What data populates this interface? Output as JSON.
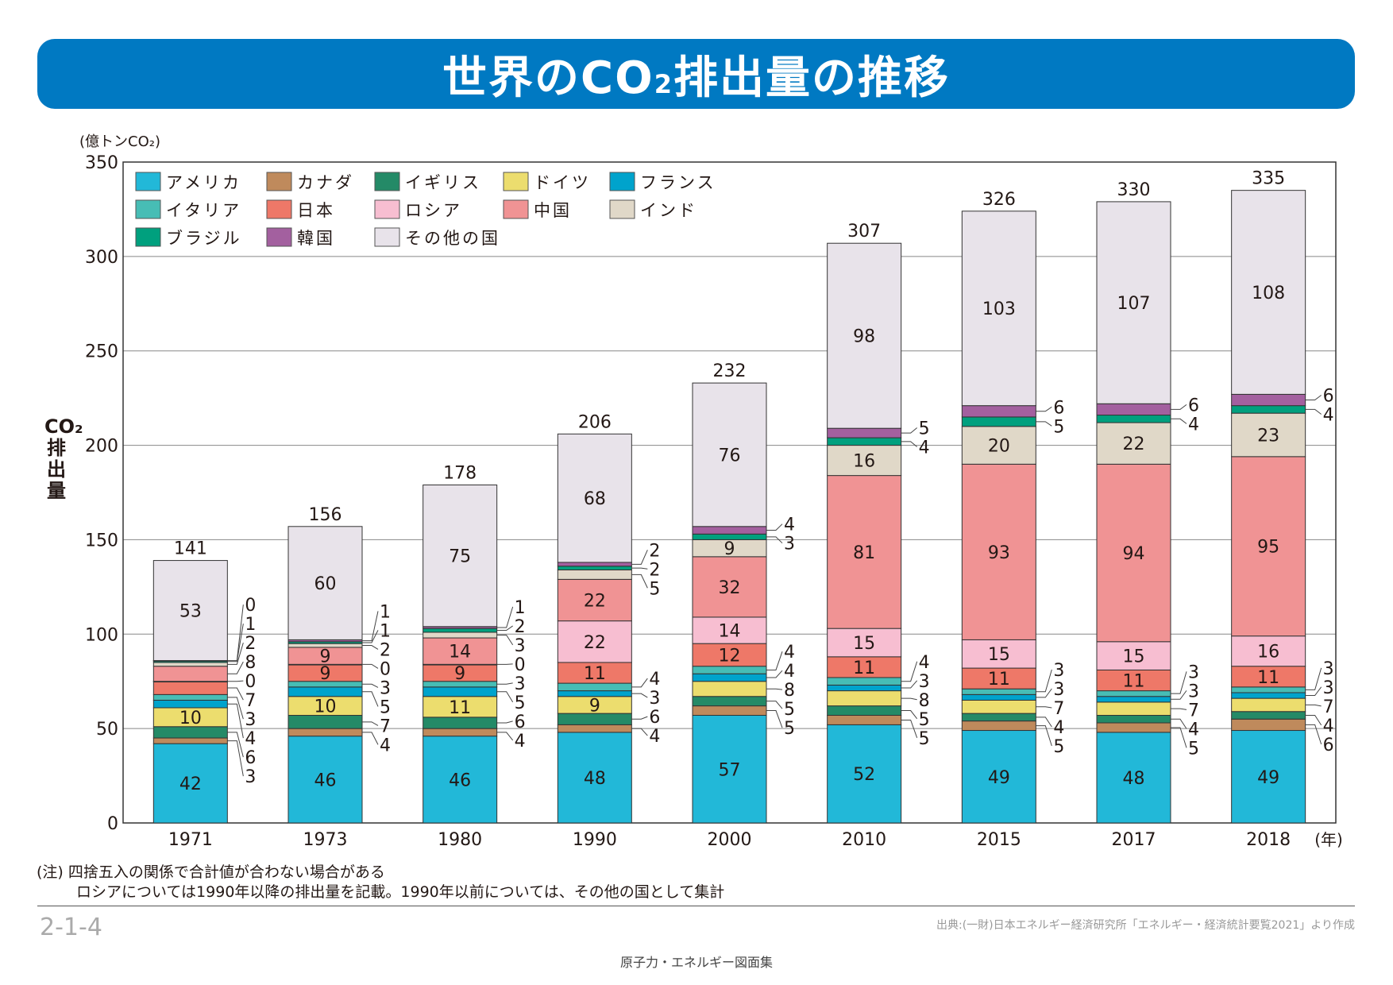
{
  "title": "世界のCO2排出量の推移",
  "title_parts": {
    "main1": "世界のCO",
    "sub": "2",
    "main2": "排出量の推移"
  },
  "unit_label": "(億トンCO₂)",
  "notes": [
    "(注) 四捨五入の関係で合計値が合わない場合がある",
    "ロシアについては1990年以降の排出量を記載。1990年以前については、その他の国として集計"
  ],
  "page_number": "2-1-4",
  "source": "出典:(一財)日本エネルギー経済研究所「エネルギー・経済統計要覧2021」より作成",
  "footer": "原子力・エネルギー図面集",
  "chart_data": {
    "type": "bar",
    "stacked": true,
    "ylabel": "CO₂排出量",
    "xlabel_unit": "(年)",
    "ylim": [
      0,
      350
    ],
    "yticks": [
      0,
      50,
      100,
      150,
      200,
      250,
      300,
      350
    ],
    "grid": true,
    "legend_placement": "top-left",
    "categories": [
      "1971",
      "1973",
      "1980",
      "1990",
      "2000",
      "2010",
      "2015",
      "2017",
      "2018"
    ],
    "totals": [
      141,
      156,
      178,
      206,
      232,
      307,
      326,
      330,
      335
    ],
    "series": [
      {
        "name": "アメリカ",
        "color": "#22b8d8",
        "values": [
          42,
          46,
          46,
          48,
          57,
          52,
          49,
          48,
          49
        ]
      },
      {
        "name": "カナダ",
        "color": "#bf8a5c",
        "values": [
          3,
          4,
          4,
          4,
          5,
          5,
          5,
          5,
          6
        ]
      },
      {
        "name": "イギリス",
        "color": "#248a67",
        "values": [
          6,
          7,
          6,
          6,
          5,
          5,
          4,
          4,
          4
        ]
      },
      {
        "name": "ドイツ",
        "color": "#ecdd6e",
        "values": [
          10,
          10,
          11,
          9,
          8,
          8,
          7,
          7,
          7
        ]
      },
      {
        "name": "フランス",
        "color": "#00a3cc",
        "values": [
          4,
          5,
          5,
          3,
          4,
          3,
          3,
          3,
          3
        ]
      },
      {
        "name": "イタリア",
        "color": "#47bdb5",
        "values": [
          3,
          3,
          3,
          4,
          4,
          4,
          3,
          3,
          3
        ]
      },
      {
        "name": "日本",
        "color": "#ee7868",
        "values": [
          7,
          9,
          9,
          11,
          12,
          11,
          11,
          11,
          11
        ]
      },
      {
        "name": "ロシア",
        "color": "#f7bed1",
        "values": [
          0,
          0,
          0,
          22,
          14,
          15,
          15,
          15,
          16
        ]
      },
      {
        "name": "中国",
        "color": "#f09394",
        "values": [
          8,
          9,
          14,
          22,
          32,
          81,
          93,
          94,
          95
        ]
      },
      {
        "name": "インド",
        "color": "#e0d8c8",
        "values": [
          2,
          2,
          3,
          5,
          9,
          16,
          20,
          22,
          23
        ]
      },
      {
        "name": "ブラジル",
        "color": "#00a07e",
        "values": [
          1,
          1,
          2,
          2,
          3,
          4,
          5,
          4,
          4
        ]
      },
      {
        "name": "韓国",
        "color": "#a3609f",
        "values": [
          0,
          1,
          1,
          2,
          4,
          5,
          6,
          6,
          6
        ]
      },
      {
        "name": "その他の国",
        "color": "#e8e3ea",
        "values": [
          53,
          60,
          75,
          68,
          76,
          98,
          103,
          107,
          108
        ]
      }
    ]
  }
}
